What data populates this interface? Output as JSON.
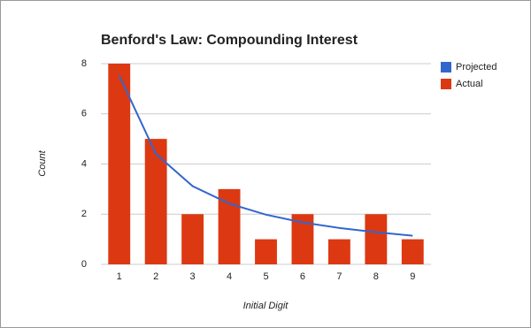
{
  "chart_data": {
    "type": "combo",
    "title": "Benford's Law: Compounding Interest",
    "x_label": "Initial Digit",
    "y_label": "Count",
    "categories": [
      "1",
      "2",
      "3",
      "4",
      "5",
      "6",
      "7",
      "8",
      "9"
    ],
    "series": [
      {
        "name": "Projected",
        "type": "line",
        "color": "#3366cc",
        "values": [
          7.53,
          4.4,
          3.12,
          2.42,
          1.98,
          1.67,
          1.45,
          1.28,
          1.14
        ]
      },
      {
        "name": "Actual",
        "type": "bar",
        "color": "#dc3912",
        "values": [
          8,
          5,
          2,
          3,
          1,
          2,
          1,
          2,
          1
        ]
      }
    ],
    "ylim": [
      0,
      8
    ],
    "yticks": [
      0,
      2,
      4,
      6,
      8
    ],
    "grid": true,
    "legend": "right"
  }
}
